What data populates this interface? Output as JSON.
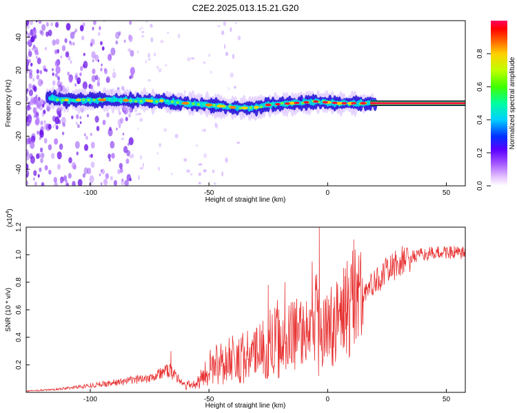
{
  "page": {
    "title": "C2E2.2025.013.15.21.G20"
  },
  "chart_data": [
    {
      "type": "heatmap",
      "title": "C2E2.2025.013.15.21.G20",
      "xlabel": "Height of straight line (km)",
      "ylabel": "Frequency (Hz)",
      "xlim": [
        -127,
        58
      ],
      "ylim": [
        -50,
        50
      ],
      "x_ticks": [
        -100,
        -50,
        0,
        50
      ],
      "x_tick_labels": [
        "-100",
        "-50",
        "0",
        "50"
      ],
      "y_ticks": [
        -40,
        -20,
        0,
        20,
        40
      ],
      "y_tick_labels": [
        "-40",
        "-20",
        "0",
        "20",
        "40"
      ],
      "colorbar": {
        "label": "Normalized spectral amplitude",
        "range": [
          0,
          1
        ],
        "ticks": [
          0,
          0.2,
          0.4,
          0.6,
          0.8
        ],
        "tick_labels": [
          "0.0",
          "0.2",
          "0.4",
          "0.6",
          "0.8"
        ]
      },
      "track": [
        {
          "x": -117,
          "y": 3
        },
        {
          "x": -110,
          "y": 2
        },
        {
          "x": -100,
          "y": 2
        },
        {
          "x": -90,
          "y": 2
        },
        {
          "x": -80,
          "y": 1.5
        },
        {
          "x": -70,
          "y": 1.5
        },
        {
          "x": -60,
          "y": 0
        },
        {
          "x": -50,
          "y": -1
        },
        {
          "x": -40,
          "y": -2.5
        },
        {
          "x": -32,
          "y": -3
        },
        {
          "x": -25,
          "y": -1
        },
        {
          "x": -15,
          "y": 0
        },
        {
          "x": -5,
          "y": 1
        },
        {
          "x": 5,
          "y": 0
        },
        {
          "x": 15,
          "y": 0
        },
        {
          "x": 30,
          "y": 0
        },
        {
          "x": 45,
          "y": 0
        },
        {
          "x": 58,
          "y": 0
        }
      ]
    },
    {
      "type": "line",
      "xlabel": "Height of straight line (km)",
      "ylabel": "SNR (10 * v/v)",
      "y_multiplier_label": "(x10",
      "y_multiplier_exponent": "4",
      "y_multiplier_close": ")",
      "xlim": [
        -127,
        58
      ],
      "ylim": [
        0,
        1.2
      ],
      "x_ticks": [
        -100,
        -50,
        0,
        50
      ],
      "x_tick_labels": [
        "-100",
        "-50",
        "0",
        "50"
      ],
      "y_ticks": [
        0.2,
        0.4,
        0.6,
        0.8,
        1.0,
        1.2
      ],
      "y_tick_labels": [
        "0.2",
        "0.4",
        "0.6",
        "0.8",
        "1.0",
        "1.2"
      ],
      "series": [
        {
          "color": "#e83030",
          "envelope": [
            [
              -127,
              0.01
            ],
            [
              -115,
              0.02
            ],
            [
              -105,
              0.04
            ],
            [
              -95,
              0.06
            ],
            [
              -85,
              0.08
            ],
            [
              -75,
              0.11
            ],
            [
              -70,
              0.14
            ],
            [
              -67,
              0.16
            ],
            [
              -64,
              0.12
            ],
            [
              -60,
              0.05
            ],
            [
              -55,
              0.06
            ],
            [
              -50,
              0.18
            ],
            [
              -45,
              0.22
            ],
            [
              -40,
              0.25
            ],
            [
              -35,
              0.26
            ],
            [
              -30,
              0.27
            ],
            [
              -25,
              0.34
            ],
            [
              -20,
              0.4
            ],
            [
              -15,
              0.44
            ],
            [
              -10,
              0.45
            ],
            [
              -7,
              0.5
            ],
            [
              -5,
              0.58
            ],
            [
              -3,
              0.45
            ],
            [
              0,
              0.5
            ],
            [
              5,
              0.58
            ],
            [
              10,
              0.66
            ],
            [
              15,
              0.72
            ],
            [
              20,
              0.8
            ],
            [
              25,
              0.88
            ],
            [
              30,
              0.94
            ],
            [
              35,
              0.98
            ],
            [
              40,
              1.0
            ],
            [
              45,
              1.01
            ],
            [
              50,
              1.02
            ],
            [
              55,
              1.01
            ],
            [
              58,
              1.01
            ]
          ],
          "peaks": [
            {
              "x": -3.5,
              "y": 1.2
            },
            {
              "x": -6.5,
              "y": 0.95
            },
            {
              "x": 7.5,
              "y": 0.9
            },
            {
              "x": 11,
              "y": 1.11
            },
            {
              "x": -25,
              "y": 0.78
            },
            {
              "x": -18,
              "y": 0.8
            },
            {
              "x": -13,
              "y": 0.68
            },
            {
              "x": -66,
              "y": 0.3
            },
            {
              "x": -3.8,
              "y": 0.12
            }
          ]
        }
      ]
    }
  ]
}
